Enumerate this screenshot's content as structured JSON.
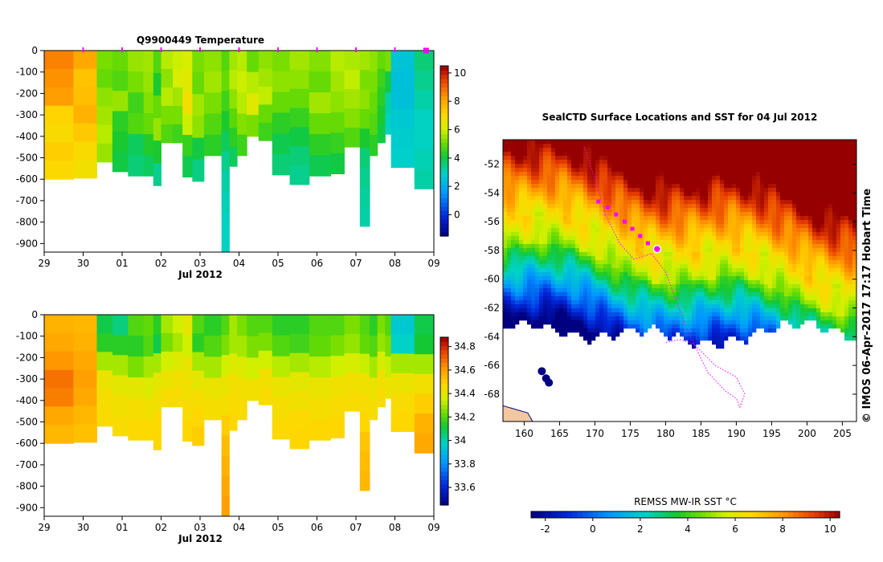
{
  "colors": {
    "marker": "#ff00ff",
    "land": "#f2c8a0",
    "frame": "#000000"
  },
  "credit": "© IMOS 06-Apr-2017 17:17 Hobart Time",
  "chart_data": [
    {
      "type": "heatmap",
      "title": "Q9900449  Temperature",
      "xlabel": "Jul 2012",
      "x_ticks": [
        "29",
        "30",
        "01",
        "02",
        "03",
        "04",
        "05",
        "06",
        "07",
        "08",
        "09"
      ],
      "xlim": [
        0,
        10
      ],
      "y_ticks": [
        "0",
        "-100",
        "-200",
        "-300",
        "-400",
        "-500",
        "-600",
        "-700",
        "-800",
        "-900"
      ],
      "ylim": [
        -940,
        0
      ],
      "colorbar": {
        "ticks": [
          "0",
          "2",
          "4",
          "6",
          "8",
          "10"
        ],
        "range": [
          -1.5,
          10.5
        ]
      },
      "profile_times": [
        1.0,
        2.0,
        3.0,
        4.0,
        5.0,
        6.0,
        7.0,
        8.0,
        9.0,
        9.8
      ],
      "columns": [
        {
          "x0": 0.0,
          "x1": 0.75,
          "depth": 600,
          "values": [
            8.6,
            8.4,
            8.2,
            7.2,
            7.0,
            7.3,
            7.1
          ]
        },
        {
          "x0": 0.75,
          "x1": 1.35,
          "depth": 595,
          "values": [
            8.0,
            7.5,
            7.6,
            7.8,
            7.4,
            7.0,
            6.8
          ]
        },
        {
          "x0": 1.35,
          "x1": 1.75,
          "depth": 520,
          "values": [
            5.2,
            5.0,
            5.4,
            5.6,
            5.8,
            5.5
          ]
        },
        {
          "x0": 1.75,
          "x1": 2.15,
          "depth": 565,
          "values": [
            5.0,
            4.8,
            5.5,
            4.4,
            4.2,
            4.0
          ]
        },
        {
          "x0": 2.15,
          "x1": 2.55,
          "depth": 585,
          "values": [
            5.5,
            5.2,
            4.6,
            4.8,
            3.8,
            3.6
          ]
        },
        {
          "x0": 2.55,
          "x1": 2.8,
          "depth": 585,
          "values": [
            5.6,
            5.5,
            5.3,
            5.0,
            4.3,
            3.8
          ]
        },
        {
          "x0": 2.8,
          "x1": 3.0,
          "depth": 630,
          "values": [
            4.8,
            4.2,
            5.0,
            5.5,
            4.2,
            3.4
          ]
        },
        {
          "x0": 3.0,
          "x1": 3.3,
          "depth": 430,
          "values": [
            5.8,
            5.4,
            5.8,
            5.2,
            4.8
          ]
        },
        {
          "x0": 3.3,
          "x1": 3.55,
          "depth": 430,
          "values": [
            6.0,
            6.2,
            5.6,
            5.2,
            4.6
          ]
        },
        {
          "x0": 3.55,
          "x1": 3.8,
          "depth": 590,
          "values": [
            6.2,
            6.4,
            6.8,
            6.0,
            4.5,
            3.9
          ]
        },
        {
          "x0": 3.8,
          "x1": 4.1,
          "depth": 610,
          "values": [
            5.2,
            5.0,
            5.6,
            5.4,
            4.0,
            3.5
          ]
        },
        {
          "x0": 4.1,
          "x1": 4.55,
          "depth": 490,
          "values": [
            5.4,
            5.6,
            5.2,
            4.8,
            4.4
          ]
        },
        {
          "x0": 4.55,
          "x1": 4.75,
          "depth": 940,
          "values": [
            4.8,
            5.0,
            4.6,
            4.2,
            3.8,
            3.4,
            3.2,
            3.1,
            3.0,
            3.0
          ]
        },
        {
          "x0": 4.75,
          "x1": 4.95,
          "depth": 540,
          "values": [
            5.6,
            5.8,
            5.4,
            4.9,
            4.4,
            3.8
          ]
        },
        {
          "x0": 4.95,
          "x1": 5.2,
          "depth": 490,
          "values": [
            5.8,
            6.0,
            5.8,
            5.3,
            4.6
          ]
        },
        {
          "x0": 5.2,
          "x1": 5.5,
          "depth": 400,
          "values": [
            5.0,
            5.8,
            6.4,
            5.2
          ]
        },
        {
          "x0": 5.5,
          "x1": 5.85,
          "depth": 420,
          "values": [
            5.4,
            5.6,
            5.9,
            5.0,
            4.6
          ]
        },
        {
          "x0": 5.85,
          "x1": 6.3,
          "depth": 580,
          "values": [
            5.2,
            5.4,
            5.0,
            4.4,
            3.9,
            3.6
          ]
        },
        {
          "x0": 6.3,
          "x1": 6.8,
          "depth": 625,
          "values": [
            5.6,
            5.4,
            5.0,
            4.5,
            4.0,
            3.6,
            3.4
          ]
        },
        {
          "x0": 6.8,
          "x1": 7.35,
          "depth": 585,
          "values": [
            5.3,
            5.0,
            5.6,
            5.0,
            4.4,
            3.9
          ]
        },
        {
          "x0": 7.35,
          "x1": 7.7,
          "depth": 575,
          "values": [
            5.8,
            5.6,
            5.4,
            5.0,
            4.5,
            4.0
          ]
        },
        {
          "x0": 7.7,
          "x1": 8.1,
          "depth": 450,
          "values": [
            5.7,
            5.9,
            5.6,
            5.3,
            4.8
          ]
        },
        {
          "x0": 8.1,
          "x1": 8.35,
          "depth": 820,
          "values": [
            5.6,
            5.2,
            5.4,
            5.0,
            4.2,
            3.6,
            3.4,
            3.3,
            3.2
          ]
        },
        {
          "x0": 8.35,
          "x1": 8.55,
          "depth": 490,
          "values": [
            5.4,
            5.2,
            5.0,
            4.8,
            4.4
          ]
        },
        {
          "x0": 8.55,
          "x1": 8.75,
          "depth": 430,
          "values": [
            5.0,
            4.6,
            4.4,
            4.2,
            4.0
          ]
        },
        {
          "x0": 8.75,
          "x1": 8.9,
          "depth": 390,
          "values": [
            5.2,
            4.0,
            3.2,
            3.0
          ]
        },
        {
          "x0": 8.9,
          "x1": 9.5,
          "depth": 545,
          "values": [
            2.6,
            2.5,
            2.5,
            2.7,
            2.8,
            2.9
          ]
        },
        {
          "x0": 9.5,
          "x1": 10.0,
          "depth": 645,
          "values": [
            3.6,
            3.4,
            3.2,
            3.0,
            3.0,
            3.1,
            3.2
          ]
        }
      ]
    },
    {
      "type": "heatmap",
      "title": "",
      "xlabel": "Jul 2012",
      "x_ticks": [
        "29",
        "30",
        "01",
        "02",
        "03",
        "04",
        "05",
        "06",
        "07",
        "08",
        "09"
      ],
      "xlim": [
        0,
        10
      ],
      "y_ticks": [
        "0",
        "-100",
        "-200",
        "-300",
        "-400",
        "-500",
        "-600",
        "-700",
        "-800",
        "-900"
      ],
      "ylim": [
        -940,
        0
      ],
      "colorbar": {
        "ticks": [
          "33.6",
          "33.8",
          "34",
          "34.2",
          "34.4",
          "34.6",
          "34.8"
        ],
        "range": [
          33.45,
          34.88
        ]
      },
      "columns": [
        {
          "x0": 0.0,
          "x1": 0.75,
          "depth": 600,
          "values": [
            34.56,
            34.58,
            34.62,
            34.68,
            34.66,
            34.58,
            34.55
          ]
        },
        {
          "x0": 0.75,
          "x1": 1.35,
          "depth": 595,
          "values": [
            34.55,
            34.56,
            34.58,
            34.6,
            34.58,
            34.55,
            34.53
          ]
        },
        {
          "x0": 1.35,
          "x1": 1.75,
          "depth": 520,
          "values": [
            34.1,
            34.15,
            34.3,
            34.42,
            34.45,
            34.46
          ]
        },
        {
          "x0": 1.75,
          "x1": 2.15,
          "depth": 565,
          "values": [
            34.05,
            34.15,
            34.3,
            34.4,
            34.44,
            34.46
          ]
        },
        {
          "x0": 2.15,
          "x1": 2.55,
          "depth": 585,
          "values": [
            34.2,
            34.15,
            34.25,
            34.4,
            34.45,
            34.47
          ]
        },
        {
          "x0": 2.55,
          "x1": 2.8,
          "depth": 585,
          "values": [
            34.22,
            34.2,
            34.3,
            34.38,
            34.44,
            34.47
          ]
        },
        {
          "x0": 2.8,
          "x1": 3.0,
          "depth": 630,
          "values": [
            34.15,
            34.1,
            34.3,
            34.4,
            34.44,
            34.47,
            34.48
          ]
        },
        {
          "x0": 3.0,
          "x1": 3.3,
          "depth": 430,
          "values": [
            34.3,
            34.25,
            34.35,
            34.42,
            34.46
          ]
        },
        {
          "x0": 3.3,
          "x1": 3.55,
          "depth": 430,
          "values": [
            34.35,
            34.3,
            34.38,
            34.44,
            34.46
          ]
        },
        {
          "x0": 3.55,
          "x1": 3.8,
          "depth": 590,
          "values": [
            34.4,
            34.35,
            34.42,
            34.44,
            34.46,
            34.48
          ]
        },
        {
          "x0": 3.8,
          "x1": 4.1,
          "depth": 610,
          "values": [
            34.2,
            34.15,
            34.3,
            34.4,
            34.45,
            34.48,
            34.5
          ]
        },
        {
          "x0": 4.1,
          "x1": 4.55,
          "depth": 490,
          "values": [
            34.15,
            34.2,
            34.3,
            34.42,
            34.45
          ]
        },
        {
          "x0": 4.55,
          "x1": 4.75,
          "depth": 940,
          "values": [
            34.2,
            34.25,
            34.35,
            34.42,
            34.45,
            34.5,
            34.54,
            34.56,
            34.58,
            34.6
          ]
        },
        {
          "x0": 4.75,
          "x1": 4.95,
          "depth": 540,
          "values": [
            34.3,
            34.3,
            34.38,
            34.44,
            34.46,
            34.48
          ]
        },
        {
          "x0": 4.95,
          "x1": 5.2,
          "depth": 490,
          "values": [
            34.25,
            34.3,
            34.38,
            34.44,
            34.46
          ]
        },
        {
          "x0": 5.2,
          "x1": 5.5,
          "depth": 400,
          "values": [
            34.2,
            34.25,
            34.35,
            34.44
          ]
        },
        {
          "x0": 5.5,
          "x1": 5.85,
          "depth": 420,
          "values": [
            34.2,
            34.25,
            34.35,
            34.44,
            34.46
          ]
        },
        {
          "x0": 5.85,
          "x1": 6.3,
          "depth": 580,
          "values": [
            34.15,
            34.2,
            34.32,
            34.42,
            34.45,
            34.47
          ]
        },
        {
          "x0": 6.3,
          "x1": 6.8,
          "depth": 625,
          "values": [
            34.15,
            34.18,
            34.3,
            34.4,
            34.44,
            34.47,
            34.48
          ]
        },
        {
          "x0": 6.8,
          "x1": 7.35,
          "depth": 585,
          "values": [
            34.2,
            34.22,
            34.32,
            34.42,
            34.45,
            34.48
          ]
        },
        {
          "x0": 7.35,
          "x1": 7.7,
          "depth": 575,
          "values": [
            34.2,
            34.25,
            34.35,
            34.43,
            34.46,
            34.48
          ]
        },
        {
          "x0": 7.7,
          "x1": 8.1,
          "depth": 450,
          "values": [
            34.25,
            34.28,
            34.36,
            34.44,
            34.46
          ]
        },
        {
          "x0": 8.1,
          "x1": 8.35,
          "depth": 820,
          "values": [
            34.2,
            34.22,
            34.34,
            34.43,
            34.46,
            34.48,
            34.52,
            34.54,
            34.55
          ]
        },
        {
          "x0": 8.35,
          "x1": 8.55,
          "depth": 490,
          "values": [
            34.15,
            34.2,
            34.3,
            34.42,
            34.45
          ]
        },
        {
          "x0": 8.55,
          "x1": 8.75,
          "depth": 430,
          "values": [
            34.25,
            34.28,
            34.36,
            34.44,
            34.46
          ]
        },
        {
          "x0": 8.75,
          "x1": 8.9,
          "depth": 390,
          "values": [
            34.2,
            34.25,
            34.34,
            34.42
          ]
        },
        {
          "x0": 8.9,
          "x1": 9.5,
          "depth": 545,
          "values": [
            33.95,
            33.98,
            34.3,
            34.42,
            34.46,
            34.48
          ]
        },
        {
          "x0": 9.5,
          "x1": 10.0,
          "depth": 645,
          "values": [
            34.1,
            34.12,
            34.3,
            34.44,
            34.5,
            34.56,
            34.58
          ]
        }
      ]
    },
    {
      "type": "heatmap",
      "title": "SealCTD Surface Locations and SST for 04 Jul 2012",
      "colorbar_label": "REMSS MW-IR SST °C",
      "x_ticks": [
        "160",
        "165",
        "170",
        "175",
        "180",
        "185",
        "190",
        "195",
        "200",
        "205"
      ],
      "xlim": [
        157,
        207
      ],
      "y_ticks": [
        "-52",
        "-54",
        "-56",
        "-58",
        "-60",
        "-62",
        "-64",
        "-66",
        "-68"
      ],
      "ylim": [
        -69.9,
        -50.3
      ],
      "colorbar": {
        "ticks": [
          "-2",
          "0",
          "2",
          "4",
          "6",
          "8",
          "10"
        ],
        "range": [
          -2.6,
          10.4
        ]
      },
      "surface_locations": [
        [
          170.5,
          -54.6
        ],
        [
          171.8,
          -55.0
        ],
        [
          173.0,
          -55.5
        ],
        [
          174.2,
          -56.0
        ],
        [
          175.3,
          -56.5
        ],
        [
          176.4,
          -57.0
        ],
        [
          177.5,
          -57.5
        ],
        [
          178.8,
          -57.9
        ]
      ],
      "latest_location": [
        178.8,
        -57.9
      ],
      "track": [
        [
          168.5,
          -50.8
        ],
        [
          170.0,
          -53.0
        ],
        [
          171.5,
          -55.5
        ],
        [
          173.5,
          -57.5
        ],
        [
          175.5,
          -58.6
        ],
        [
          177.0,
          -58.4
        ],
        [
          178.0,
          -58.2
        ],
        [
          180.0,
          -59.5
        ],
        [
          181.5,
          -61.5
        ],
        [
          183.0,
          -63.5
        ],
        [
          184.5,
          -65.0
        ],
        [
          186.0,
          -66.5
        ],
        [
          188.5,
          -67.8
        ],
        [
          190.0,
          -68.3
        ],
        [
          190.5,
          -68.9
        ],
        [
          191.2,
          -68.0
        ],
        [
          190.0,
          -66.8
        ],
        [
          187.0,
          -66.0
        ],
        [
          184.0,
          -64.5
        ],
        [
          182.0,
          -64.2
        ],
        [
          180.0,
          -64.4
        ]
      ]
    }
  ]
}
